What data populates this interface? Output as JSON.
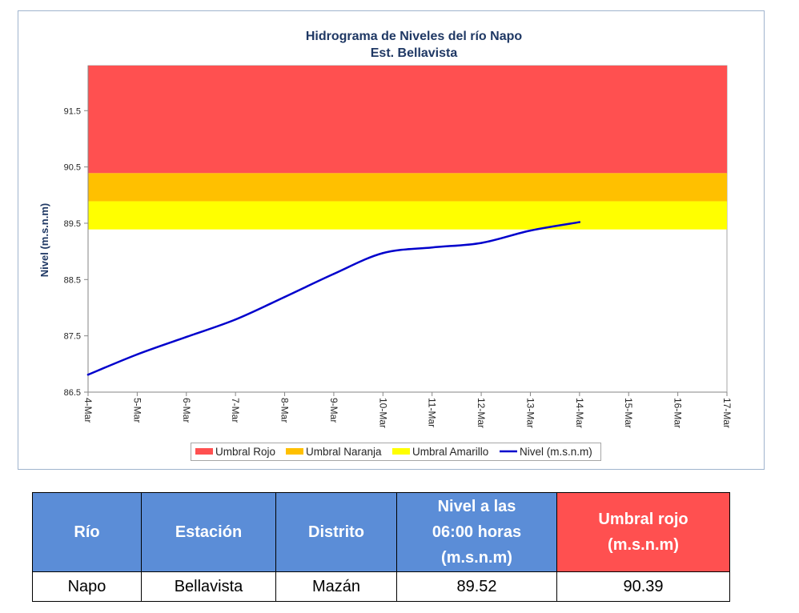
{
  "chart_data": {
    "type": "line",
    "title": "Hidrograma de Niveles del río Napo",
    "subtitle": "Est. Bellavista",
    "ylabel": "Nivel (m.s.n.m)",
    "categories": [
      "4-Mar",
      "5-Mar",
      "6-Mar",
      "7-Mar",
      "8-Mar",
      "9-Mar",
      "10-Mar",
      "11-Mar",
      "12-Mar",
      "13-Mar",
      "14-Mar",
      "15-Mar",
      "16-Mar",
      "17-Mar"
    ],
    "ylim": [
      86.5,
      92.3
    ],
    "yticks": [
      86.5,
      87.5,
      88.5,
      89.5,
      90.5,
      91.5
    ],
    "grid": false,
    "legend_position": "bottom",
    "bands": [
      {
        "name": "Umbral Rojo",
        "from": 90.39,
        "to": 92.3,
        "color": "#FF5050"
      },
      {
        "name": "Umbral Naranja",
        "from": 89.89,
        "to": 90.39,
        "color": "#FFC000"
      },
      {
        "name": "Umbral Amarillo",
        "from": 89.39,
        "to": 89.89,
        "color": "#FFFF00"
      }
    ],
    "series": [
      {
        "name": "Nivel (m.s.n.m)",
        "color": "#0000CC",
        "smooth": true,
        "values": [
          86.81,
          87.17,
          87.48,
          87.79,
          88.19,
          88.6,
          88.97,
          89.07,
          89.15,
          89.37,
          89.52,
          null,
          null,
          null
        ]
      }
    ]
  },
  "table": {
    "header_colors": [
      "#5B8DD7",
      "#5B8DD7",
      "#5B8DD7",
      "#5B8DD7",
      "#FF5050"
    ],
    "headers": [
      [
        "Río"
      ],
      [
        "Estación"
      ],
      [
        "Distrito"
      ],
      [
        "Nivel a las",
        "06:00 horas",
        "(m.s.n.m)"
      ],
      [
        "Umbral rojo",
        "(m.s.n.m)"
      ]
    ],
    "rows": [
      [
        "Napo",
        "Bellavista",
        "Mazán",
        "89.52",
        "90.39"
      ]
    ]
  }
}
